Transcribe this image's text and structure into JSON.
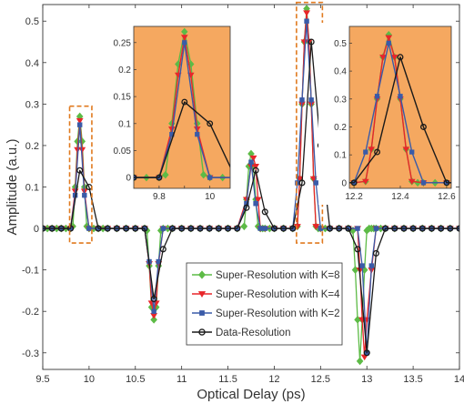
{
  "chart_data": {
    "type": "line",
    "xlabel": "Optical Delay (ps)",
    "ylabel": "Amplitude (a.u.)",
    "xlim": [
      9.5,
      14
    ],
    "ylim": [
      -0.34,
      0.54
    ],
    "xticks": [
      9.5,
      10,
      10.5,
      11,
      11.5,
      12,
      12.5,
      13,
      13.5,
      14
    ],
    "yticks": [
      -0.3,
      -0.2,
      -0.1,
      0,
      0.1,
      0.2,
      0.3,
      0.4,
      0.5
    ],
    "grid": false,
    "legend_position": "bottom-center",
    "highlight_boxes": [
      {
        "x": [
          9.79,
          10.03
        ],
        "y": [
          -0.035,
          0.295
        ]
      },
      {
        "x": [
          12.24,
          12.52
        ],
        "y": [
          -0.035,
          0.545
        ]
      }
    ],
    "series": [
      {
        "name": "Super-Resolution with K=8",
        "color": "#5dbb46",
        "marker": "diamond",
        "x": [
          9.5,
          9.55,
          9.6,
          9.65,
          9.7,
          9.75,
          9.8,
          9.825,
          9.85,
          9.875,
          9.9,
          9.925,
          9.95,
          9.975,
          10,
          10.05,
          10.1,
          10.15,
          10.2,
          10.3,
          10.4,
          10.5,
          10.6,
          10.625,
          10.65,
          10.675,
          10.7,
          10.725,
          10.75,
          10.775,
          10.8,
          10.85,
          10.9,
          11,
          11.1,
          11.2,
          11.3,
          11.4,
          11.5,
          11.6,
          11.675,
          11.7,
          11.725,
          11.75,
          11.775,
          11.8,
          11.825,
          11.85,
          11.875,
          11.9,
          11.95,
          12,
          12.1,
          12.2,
          12.25,
          12.275,
          12.3,
          12.325,
          12.35,
          12.375,
          12.4,
          12.425,
          12.45,
          12.475,
          12.5,
          12.55,
          12.6,
          12.7,
          12.8,
          12.85,
          12.875,
          12.9,
          12.925,
          12.95,
          12.975,
          13,
          13.025,
          13.05,
          13.075,
          13.1,
          13.15,
          13.2,
          13.3,
          13.4,
          13.5,
          13.6,
          13.7,
          13.8,
          13.9,
          14
        ],
        "y": [
          0,
          0,
          0,
          0,
          0,
          0,
          0,
          0.005,
          0.1,
          0.21,
          0.27,
          0.21,
          0.1,
          0.005,
          0,
          0,
          0,
          0,
          0,
          0,
          0,
          0,
          0,
          -0.005,
          -0.09,
          -0.19,
          -0.22,
          -0.19,
          -0.09,
          -0.005,
          0,
          0,
          0,
          0,
          0,
          0,
          0,
          0,
          0,
          0,
          0.005,
          0.07,
          0.15,
          0.18,
          0.15,
          0.07,
          0.005,
          0,
          0,
          0,
          0,
          0,
          0,
          0,
          0.005,
          0.12,
          0.3,
          0.45,
          0.53,
          0.45,
          0.3,
          0.12,
          0.005,
          0,
          0,
          0,
          0,
          0,
          0,
          -0.005,
          -0.1,
          -0.22,
          -0.32,
          -0.22,
          -0.1,
          -0.005,
          0,
          0,
          0,
          0,
          0,
          0,
          0,
          0,
          0,
          0,
          0,
          0,
          0,
          0
        ]
      },
      {
        "name": "Super-Resolution with K=4",
        "color": "#e8262a",
        "marker": "triangle-down",
        "x": [
          9.5,
          9.6,
          9.7,
          9.8,
          9.85,
          9.875,
          9.9,
          9.925,
          9.95,
          10,
          10.1,
          10.2,
          10.3,
          10.4,
          10.5,
          10.6,
          10.65,
          10.675,
          10.7,
          10.725,
          10.75,
          10.8,
          10.9,
          11,
          11.1,
          11.2,
          11.3,
          11.4,
          11.5,
          11.6,
          11.7,
          11.75,
          11.775,
          11.8,
          11.825,
          11.85,
          11.9,
          12,
          12.1,
          12.2,
          12.25,
          12.275,
          12.3,
          12.325,
          12.35,
          12.375,
          12.4,
          12.425,
          12.45,
          12.5,
          12.6,
          12.7,
          12.8,
          12.9,
          12.925,
          12.95,
          12.975,
          13,
          13.05,
          13.1,
          13.2,
          13.3,
          13.4,
          13.5,
          13.6,
          13.7,
          13.8,
          13.9,
          14
        ],
        "y": [
          0,
          0,
          0,
          0,
          0.09,
          0.19,
          0.26,
          0.19,
          0.09,
          0,
          0,
          0,
          0,
          0,
          0,
          0,
          -0.085,
          -0.18,
          -0.21,
          -0.18,
          -0.085,
          0,
          0,
          0,
          0,
          0,
          0,
          0,
          0,
          0,
          0.07,
          0.15,
          0.17,
          0.15,
          0.07,
          0,
          0,
          0,
          0,
          0,
          0.005,
          0.12,
          0.3,
          0.45,
          0.52,
          0.45,
          0.3,
          0.12,
          0.005,
          0,
          0,
          0,
          0,
          0,
          -0.1,
          -0.22,
          -0.31,
          -0.22,
          -0.1,
          0,
          0,
          0,
          0,
          0,
          0,
          0,
          0,
          0,
          0
        ]
      },
      {
        "name": "Super-Resolution with K=2",
        "color": "#3a5ba8",
        "marker": "square",
        "x": [
          9.5,
          9.6,
          9.7,
          9.8,
          9.85,
          9.9,
          9.95,
          10,
          10.1,
          10.2,
          10.3,
          10.4,
          10.5,
          10.6,
          10.65,
          10.7,
          10.75,
          10.8,
          10.9,
          11,
          11.1,
          11.2,
          11.3,
          11.4,
          11.5,
          11.6,
          11.7,
          11.75,
          11.8,
          11.85,
          11.9,
          12,
          12.1,
          12.2,
          12.25,
          12.3,
          12.35,
          12.4,
          12.45,
          12.5,
          12.6,
          12.7,
          12.8,
          12.9,
          12.95,
          13,
          13.05,
          13.1,
          13.2,
          13.3,
          13.4,
          13.5,
          13.6,
          13.7,
          13.8,
          13.9,
          14
        ],
        "y": [
          0,
          0,
          0,
          0,
          0.08,
          0.25,
          0.08,
          0,
          0,
          0,
          0,
          0,
          0,
          0,
          -0.08,
          -0.2,
          -0.08,
          0,
          0,
          0,
          0,
          0,
          0,
          0,
          0,
          0,
          0.06,
          0.16,
          0.06,
          0,
          0,
          0,
          0,
          0,
          0.11,
          0.31,
          0.5,
          0.31,
          0.11,
          0,
          0,
          0,
          0,
          0,
          -0.09,
          -0.3,
          -0.09,
          0,
          0,
          0,
          0,
          0,
          0,
          0,
          0,
          0,
          0
        ]
      },
      {
        "name": "Data-Resolution",
        "color": "#1a1a1a",
        "marker": "circle",
        "x": [
          9.5,
          9.6,
          9.7,
          9.8,
          9.9,
          10,
          10.1,
          10.2,
          10.3,
          10.4,
          10.5,
          10.6,
          10.7,
          10.8,
          10.9,
          11,
          11.1,
          11.2,
          11.3,
          11.4,
          11.5,
          11.6,
          11.7,
          11.8,
          11.9,
          12,
          12.1,
          12.2,
          12.3,
          12.4,
          12.5,
          12.6,
          12.7,
          12.8,
          12.9,
          13,
          13.1,
          13.2,
          13.3,
          13.4,
          13.5,
          13.6,
          13.7,
          13.8,
          13.9,
          14
        ],
        "y": [
          0,
          0,
          0,
          0,
          0.14,
          0.1,
          0,
          0,
          0,
          0,
          0,
          0,
          -0.17,
          -0.05,
          0,
          0,
          0,
          0,
          0,
          0,
          0,
          0,
          0.05,
          0.14,
          0.04,
          0,
          0,
          0,
          0.11,
          0.45,
          0.2,
          0,
          0,
          0,
          -0.05,
          -0.3,
          -0.06,
          0,
          0,
          0,
          0,
          0,
          0,
          0,
          0,
          0
        ]
      }
    ],
    "insets": [
      {
        "xlim": [
          9.7,
          10.08
        ],
        "ylim": [
          -0.02,
          0.28
        ],
        "xticks": [
          9.8,
          9.9,
          10
        ],
        "xtick_labels": [
          "9.8",
          "",
          "10"
        ],
        "yticks": [
          0,
          0.05,
          0.1,
          0.15,
          0.2,
          0.25
        ],
        "background": "#f5a860"
      },
      {
        "xlim": [
          12.18,
          12.62
        ],
        "ylim": [
          -0.02,
          0.56
        ],
        "xticks": [
          12.2,
          12.4,
          12.6
        ],
        "xtick_labels": [
          "12.2",
          "12.4",
          "12.6"
        ],
        "yticks": [
          0,
          0.1,
          0.2,
          0.3,
          0.4,
          0.5
        ],
        "background": "#f5a860"
      }
    ]
  }
}
